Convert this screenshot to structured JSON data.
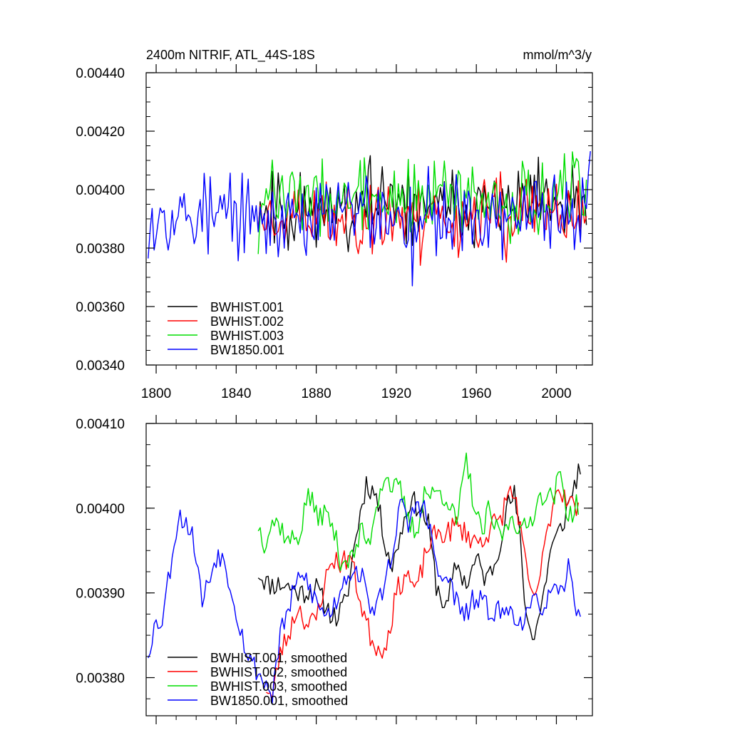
{
  "chart_data": [
    {
      "type": "line",
      "title_left": "2400m NITRIF, ATL_44S-18S",
      "title_right": "mmol/m^3/y",
      "xlim": [
        1795,
        2018
      ],
      "ylim": [
        0.0034,
        0.0044
      ],
      "xticks": [
        1800,
        1840,
        1880,
        1920,
        1960,
        2000
      ],
      "xtick_labels": [
        "1800",
        "1840",
        "1880",
        "1920",
        "1960",
        "2000"
      ],
      "yticks": [
        0.0034,
        0.0036,
        0.0038,
        0.004,
        0.0042,
        0.0044
      ],
      "ytick_labels": [
        "0.00340",
        "0.00360",
        "0.00380",
        "0.00400",
        "0.00420",
        "0.00440"
      ],
      "legend": [
        "BWHIST.001",
        "BWHIST.002",
        "BWHIST.003",
        "BW1850.001"
      ],
      "legend_position": "bottom-left",
      "series": [
        {
          "name": "BWHIST.001",
          "color": "#000000",
          "x_start": 1851,
          "x_end": 2015,
          "mean": 0.00394,
          "amp": 0.00012,
          "seed": 11,
          "smooth": 0
        },
        {
          "name": "BWHIST.002",
          "color": "#ff0000",
          "x_start": 1851,
          "x_end": 2015,
          "mean": 0.00391,
          "amp": 0.00012,
          "seed": 23,
          "smooth": 0
        },
        {
          "name": "BWHIST.003",
          "color": "#00dd00",
          "x_start": 1851,
          "x_end": 2015,
          "mean": 0.00397,
          "amp": 0.00012,
          "seed": 37,
          "smooth": 0
        },
        {
          "name": "BW1850.001",
          "color": "#0000ff",
          "x_start": 1796,
          "x_end": 2017,
          "mean": 0.00391,
          "amp": 0.00013,
          "seed": 53,
          "smooth": 0
        }
      ]
    },
    {
      "type": "line",
      "xlim": [
        1795,
        2018
      ],
      "ylim": [
        0.003755,
        0.0041
      ],
      "xticks": [
        1800,
        1840,
        1880,
        1920,
        1960,
        2000
      ],
      "xtick_labels": [],
      "yticks": [
        0.0038,
        0.0039,
        0.004,
        0.0041
      ],
      "ytick_labels": [
        "0.00380",
        "0.00390",
        "0.00400",
        "0.00410"
      ],
      "legend": [
        "BWHIST.001, smoothed",
        "BWHIST.002, smoothed",
        "BWHIST.003, smoothed",
        "BW1850.001, smoothed"
      ],
      "legend_position": "bottom-left",
      "series": [
        {
          "name": "BWHIST.001, smoothed",
          "color": "#000000",
          "x_start": 1851,
          "x_end": 2012,
          "seed": 11,
          "smooth": 1,
          "anchors": [
            [
              1851,
              0.003925
            ],
            [
              1856,
              0.00391
            ],
            [
              1864,
              0.00391
            ],
            [
              1872,
              0.0039
            ],
            [
              1880,
              0.003905
            ],
            [
              1886,
              0.00388
            ],
            [
              1890,
              0.00387
            ],
            [
              1895,
              0.00389
            ],
            [
              1900,
              0.00397
            ],
            [
              1905,
              0.00403
            ],
            [
              1910,
              0.004015
            ],
            [
              1914,
              0.003965
            ],
            [
              1918,
              0.00393
            ],
            [
              1922,
              0.00397
            ],
            [
              1927,
              0.00401
            ],
            [
              1932,
              0.004
            ],
            [
              1936,
              0.00398
            ],
            [
              1940,
              0.00391
            ],
            [
              1945,
              0.00388
            ],
            [
              1950,
              0.003935
            ],
            [
              1955,
              0.00391
            ],
            [
              1960,
              0.00394
            ],
            [
              1965,
              0.003915
            ],
            [
              1970,
              0.00394
            ],
            [
              1975,
              0.004
            ],
            [
              1979,
              0.004015
            ],
            [
              1982,
              0.00396
            ],
            [
              1985,
              0.00387
            ],
            [
              1989,
              0.00385
            ],
            [
              1993,
              0.00389
            ],
            [
              1997,
              0.00395
            ],
            [
              2003,
              0.00398
            ],
            [
              2008,
              0.00402
            ],
            [
              2012,
              0.00405
            ]
          ]
        },
        {
          "name": "BWHIST.002, smoothed",
          "color": "#ff0000",
          "x_start": 1855,
          "x_end": 2011,
          "seed": 23,
          "smooth": 1,
          "anchors": [
            [
              1855,
              0.00379
            ],
            [
              1858,
              0.003775
            ],
            [
              1862,
              0.00383
            ],
            [
              1866,
              0.00385
            ],
            [
              1871,
              0.003885
            ],
            [
              1876,
              0.00386
            ],
            [
              1880,
              0.00387
            ],
            [
              1884,
              0.00391
            ],
            [
              1888,
              0.00394
            ],
            [
              1893,
              0.003935
            ],
            [
              1897,
              0.003945
            ],
            [
              1902,
              0.00389
            ],
            [
              1907,
              0.00385
            ],
            [
              1912,
              0.00383
            ],
            [
              1916,
              0.00385
            ],
            [
              1920,
              0.0039
            ],
            [
              1925,
              0.003925
            ],
            [
              1930,
              0.0039
            ],
            [
              1935,
              0.00395
            ],
            [
              1940,
              0.00397
            ],
            [
              1945,
              0.00397
            ],
            [
              1950,
              0.00398
            ],
            [
              1955,
              0.00397
            ],
            [
              1960,
              0.00396
            ],
            [
              1964,
              0.003965
            ],
            [
              1968,
              0.00398
            ],
            [
              1972,
              0.003985
            ],
            [
              1976,
              0.00402
            ],
            [
              1980,
              0.00401
            ],
            [
              1984,
              0.00394
            ],
            [
              1988,
              0.00389
            ],
            [
              1992,
              0.00392
            ],
            [
              1996,
              0.00398
            ],
            [
              2000,
              0.004025
            ],
            [
              2005,
              0.004015
            ],
            [
              2011,
              0.003995
            ]
          ]
        },
        {
          "name": "BWHIST.003, smoothed",
          "color": "#00dd00",
          "x_start": 1851,
          "x_end": 2011,
          "seed": 37,
          "smooth": 1,
          "anchors": [
            [
              1851,
              0.00398
            ],
            [
              1854,
              0.00396
            ],
            [
              1858,
              0.003985
            ],
            [
              1862,
              0.00398
            ],
            [
              1866,
              0.00396
            ],
            [
              1872,
              0.00397
            ],
            [
              1876,
              0.00402
            ],
            [
              1880,
              0.00399
            ],
            [
              1884,
              0.003995
            ],
            [
              1888,
              0.00398
            ],
            [
              1892,
              0.00394
            ],
            [
              1898,
              0.00394
            ],
            [
              1903,
              0.003975
            ],
            [
              1906,
              0.003955
            ],
            [
              1910,
              0.004005
            ],
            [
              1914,
              0.00404
            ],
            [
              1918,
              0.004025
            ],
            [
              1922,
              0.00402
            ],
            [
              1926,
              0.003985
            ],
            [
              1930,
              0.00397
            ],
            [
              1934,
              0.00402
            ],
            [
              1938,
              0.004015
            ],
            [
              1942,
              0.00402
            ],
            [
              1946,
              0.00401
            ],
            [
              1950,
              0.00398
            ],
            [
              1955,
              0.004055
            ],
            [
              1960,
              0.00399
            ],
            [
              1963,
              0.00397
            ],
            [
              1966,
              0.003995
            ],
            [
              1970,
              0.003975
            ],
            [
              1974,
              0.00397
            ],
            [
              1978,
              0.003995
            ],
            [
              1982,
              0.00397
            ],
            [
              1986,
              0.00398
            ],
            [
              1990,
              0.004005
            ],
            [
              1994,
              0.00402
            ],
            [
              1998,
              0.00401
            ],
            [
              2002,
              0.00404
            ],
            [
              2006,
              0.00399
            ],
            [
              2011,
              0.004005
            ]
          ]
        },
        {
          "name": "BW1850.001, smoothed",
          "color": "#0000ff",
          "x_start": 1796,
          "x_end": 2012,
          "seed": 53,
          "smooth": 1,
          "anchors": [
            [
              1796,
              0.00383
            ],
            [
              1799,
              0.00386
            ],
            [
              1803,
              0.00387
            ],
            [
              1807,
              0.00393
            ],
            [
              1811,
              0.00399
            ],
            [
              1815,
              0.003985
            ],
            [
              1819,
              0.00396
            ],
            [
              1823,
              0.00389
            ],
            [
              1827,
              0.00392
            ],
            [
              1831,
              0.00395
            ],
            [
              1835,
              0.00393
            ],
            [
              1839,
              0.00389
            ],
            [
              1843,
              0.00385
            ],
            [
              1846,
              0.003825
            ],
            [
              1850,
              0.00381
            ],
            [
              1854,
              0.003795
            ],
            [
              1858,
              0.00378
            ],
            [
              1862,
              0.00385
            ],
            [
              1866,
              0.00388
            ],
            [
              1870,
              0.00391
            ],
            [
              1874,
              0.00392
            ],
            [
              1878,
              0.0039
            ],
            [
              1882,
              0.00388
            ],
            [
              1886,
              0.003875
            ],
            [
              1890,
              0.00389
            ],
            [
              1894,
              0.00392
            ],
            [
              1898,
              0.003925
            ],
            [
              1902,
              0.003925
            ],
            [
              1906,
              0.00389
            ],
            [
              1910,
              0.00388
            ],
            [
              1914,
              0.00391
            ],
            [
              1918,
              0.00395
            ],
            [
              1922,
              0.004005
            ],
            [
              1926,
              0.00398
            ],
            [
              1930,
              0.004005
            ],
            [
              1934,
              0.004
            ],
            [
              1938,
              0.00396
            ],
            [
              1942,
              0.00391
            ],
            [
              1946,
              0.00392
            ],
            [
              1950,
              0.00389
            ],
            [
              1954,
              0.00387
            ],
            [
              1958,
              0.00389
            ],
            [
              1962,
              0.00389
            ],
            [
              1966,
              0.00388
            ],
            [
              1970,
              0.00388
            ],
            [
              1974,
              0.003875
            ],
            [
              1978,
              0.00388
            ],
            [
              1982,
              0.003865
            ],
            [
              1986,
              0.003875
            ],
            [
              1990,
              0.00389
            ],
            [
              1994,
              0.003885
            ],
            [
              1998,
              0.0039
            ],
            [
              2002,
              0.003895
            ],
            [
              2006,
              0.00393
            ],
            [
              2009,
              0.00389
            ],
            [
              2012,
              0.00388
            ]
          ]
        }
      ]
    }
  ]
}
